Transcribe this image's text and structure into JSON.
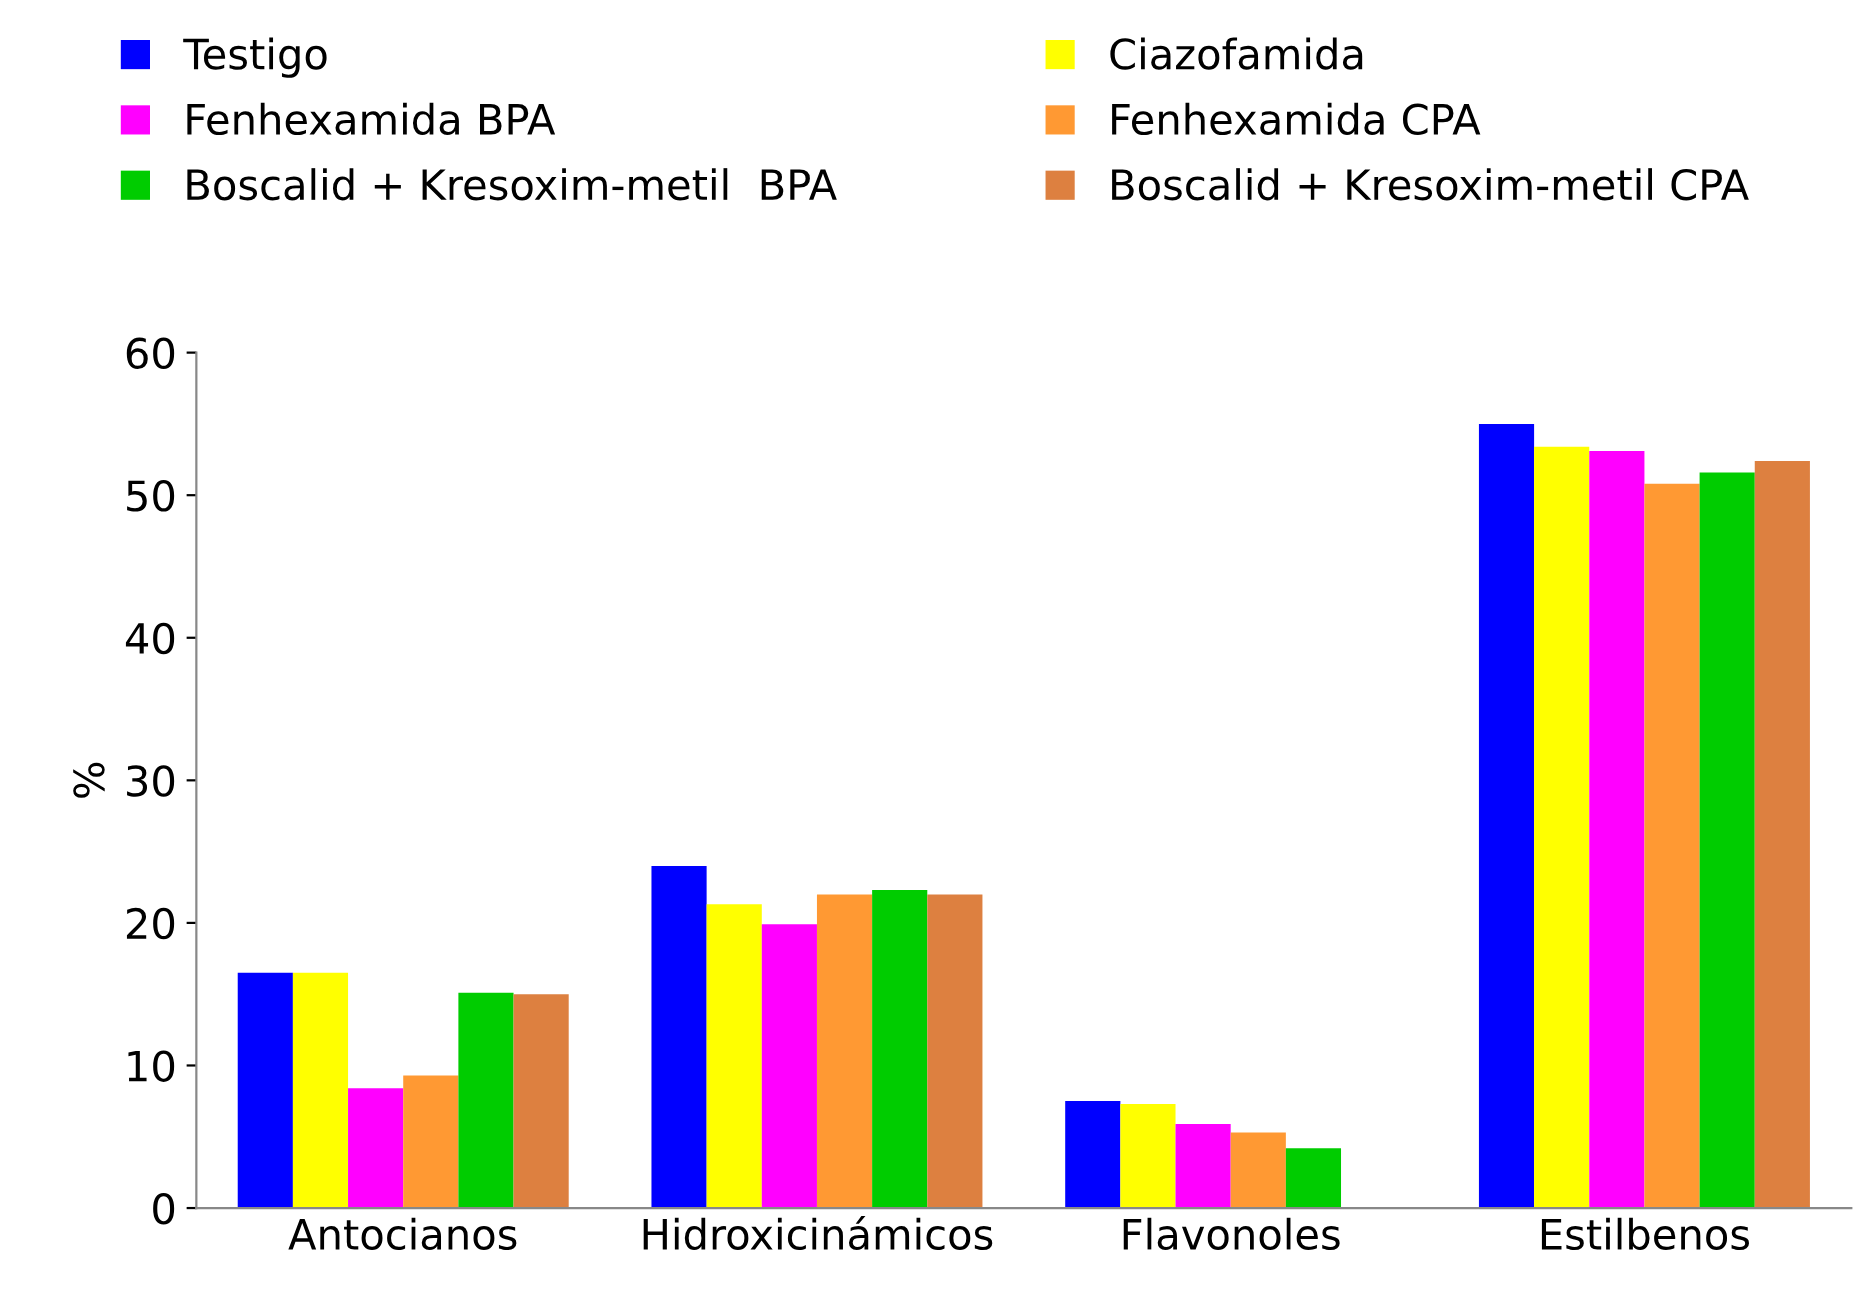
{
  "chart_data": {
    "type": "bar",
    "ylabel": "%",
    "categories": [
      "Antocianos",
      "Hidroxicinámicos",
      "Flavonoles",
      "Estilbenos"
    ],
    "ylim": [
      0,
      60
    ],
    "yticks": [
      0,
      10,
      20,
      30,
      40,
      50,
      60
    ],
    "grid": false,
    "legend": "top",
    "series": [
      {
        "name": "Testigo",
        "color": "#0000ff",
        "values": [
          16.5,
          24.0,
          7.5,
          55.0
        ]
      },
      {
        "name": "Ciazofamida",
        "color": "#ffff00",
        "values": [
          16.5,
          21.3,
          7.3,
          53.4
        ]
      },
      {
        "name": "Fenhexamida BPA",
        "color": "#ff00ff",
        "values": [
          8.4,
          19.9,
          5.9,
          53.1
        ]
      },
      {
        "name": "Fenhexamida CPA",
        "color": "#ff9933",
        "values": [
          9.3,
          22.0,
          5.3,
          50.8
        ]
      },
      {
        "name": "Boscalid + Kresoxim-metil  BPA",
        "color": "#00cc00",
        "values": [
          15.1,
          22.3,
          4.2,
          51.6
        ]
      },
      {
        "name": "Boscalid + Kresoxim-metil CPA",
        "color": "#dd8040",
        "values": [
          15.0,
          22.0,
          0,
          52.4
        ]
      }
    ]
  }
}
